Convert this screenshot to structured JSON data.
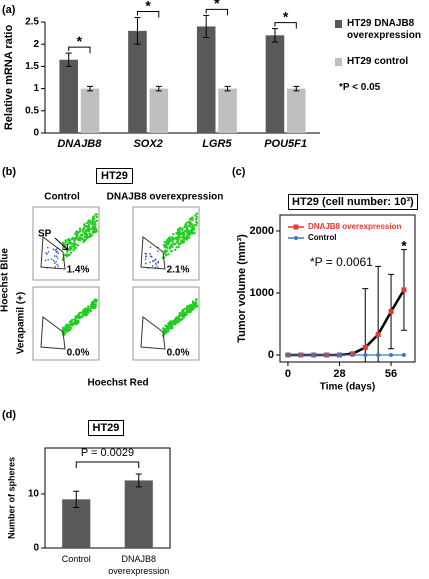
{
  "flow_panel": {
    "panel": "(b)",
    "title": "HT29",
    "columns": [
      "Control",
      "DNAJB8 overexpression"
    ],
    "gate_label": "SP",
    "percentages": [
      "1.4%",
      "2.1%",
      "0.0%",
      "0.0%"
    ],
    "y_label": "Hoechst Blue",
    "row_label": "Verapamil (+)",
    "x_label": "Hoechst Red"
  },
  "chart_data": [
    {
      "type": "bar",
      "panel": "(a)",
      "y_label": "Relative mRNA ratio",
      "categories": [
        "DNAJB8",
        "SOX2",
        "LGR5",
        "POU5F1"
      ],
      "series": [
        {
          "name": "HT29 DNAJB8 overexpression",
          "color": "#595959",
          "values": [
            1.65,
            2.3,
            2.4,
            2.2
          ],
          "errors": [
            0.15,
            0.3,
            0.25,
            0.15
          ]
        },
        {
          "name": "HT29 control",
          "color": "#bfbfbf",
          "values": [
            1,
            1,
            1,
            1
          ],
          "errors": [
            0.05,
            0.05,
            0.05,
            0.05
          ]
        }
      ],
      "ylim": [
        0,
        2.5
      ],
      "yticks": [
        0,
        0.5,
        1,
        1.5,
        2,
        2.5
      ],
      "significance": [
        "*",
        "*",
        "*",
        "*"
      ],
      "note": "*P < 0.05"
    },
    {
      "type": "line",
      "panel": "(c)",
      "title": "HT29 (cell number: 10³)",
      "x_label": "Time (days)",
      "y_label": "Tumor volume (mm³)",
      "x": [
        0,
        7,
        14,
        21,
        28,
        35,
        42,
        49,
        56,
        63
      ],
      "series": [
        {
          "name": "DNAJB8 overexpression",
          "color": "#e03c31",
          "line_color": "#000000",
          "values": [
            0,
            0,
            0,
            0,
            0,
            20,
            120,
            330,
            700,
            1050
          ],
          "errors": [
            0,
            0,
            0,
            0,
            0,
            20,
            950,
            1100,
            600,
            650
          ]
        },
        {
          "name": "Control",
          "color": "#3a78c2",
          "values": [
            0,
            0,
            0,
            0,
            0,
            0,
            0,
            0,
            0,
            0
          ]
        }
      ],
      "xlim": [
        -4.3,
        69
      ],
      "xticks": [
        0,
        28,
        56
      ],
      "ylim": [
        -113,
        2258
      ],
      "yticks": [
        0,
        1000,
        2000
      ],
      "annotations": [
        "*P = 0.0061",
        "*"
      ]
    },
    {
      "type": "bar",
      "panel": "(d)",
      "title": "HT29",
      "y_label": "Number of spheres",
      "categories": [
        "Control",
        "DNAJB8 overexpression"
      ],
      "values": [
        9,
        12.5
      ],
      "errors": [
        1.5,
        1.2
      ],
      "color": "#595959",
      "ylim": [
        0,
        18.5
      ],
      "yticks": [
        0,
        10
      ],
      "annotations": [
        "P = 0.0029"
      ]
    }
  ]
}
